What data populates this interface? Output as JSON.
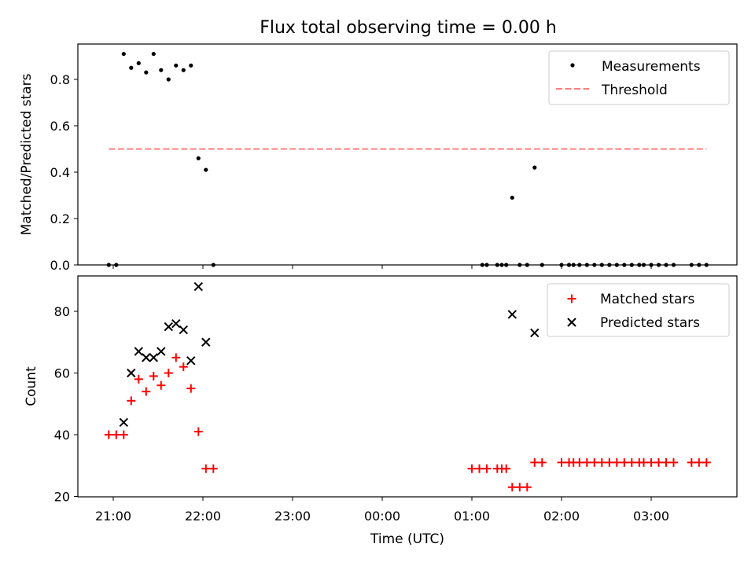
{
  "title": "Flux total observing time = 0.00 h",
  "chart_data": [
    {
      "type": "scatter",
      "ylabel": "Matched/Predicted stars",
      "xlabel": "",
      "ylim": [
        0,
        0.95
      ],
      "yticks": [
        0.0,
        0.2,
        0.4,
        0.6,
        0.8
      ],
      "legend_position": "top-right",
      "series": [
        {
          "name": "Measurements",
          "marker": "dot",
          "color": "#000000",
          "x": [
            "20:57",
            "21:02",
            "21:07",
            "21:12",
            "21:17",
            "21:22",
            "21:27",
            "21:32",
            "21:37",
            "21:42",
            "21:47",
            "21:52",
            "21:57",
            "22:02",
            "22:07",
            "01:07",
            "01:10",
            "01:17",
            "01:20",
            "01:23",
            "01:27",
            "01:32",
            "01:37",
            "01:42",
            "01:47",
            "02:00",
            "02:05",
            "02:08",
            "02:12",
            "02:17",
            "02:22",
            "02:27",
            "02:32",
            "02:37",
            "02:42",
            "02:47",
            "02:52",
            "02:55",
            "03:00",
            "03:05",
            "03:10",
            "03:15",
            "03:27",
            "03:32",
            "03:37"
          ],
          "y": [
            0.0,
            0.0,
            0.91,
            0.85,
            0.87,
            0.83,
            0.91,
            0.84,
            0.8,
            0.86,
            0.84,
            0.86,
            0.46,
            0.41,
            0.0,
            0.0,
            0.0,
            0.0,
            0.0,
            0.0,
            0.29,
            0.0,
            0.0,
            0.42,
            0.0,
            0.0,
            0.0,
            0.0,
            0.0,
            0.0,
            0.0,
            0.0,
            0.0,
            0.0,
            0.0,
            0.0,
            0.0,
            0.0,
            0.0,
            0.0,
            0.0,
            0.0,
            0.0,
            0.0,
            0.0
          ]
        },
        {
          "name": "Threshold",
          "type": "line",
          "style": "dashed",
          "color": "#ff7f7f",
          "x": [
            "20:57",
            "03:37"
          ],
          "y": [
            0.5,
            0.5
          ]
        }
      ]
    },
    {
      "type": "scatter",
      "ylabel": "Count",
      "xlabel": "Time (UTC)",
      "ylim": [
        20,
        92
      ],
      "yticks": [
        20,
        40,
        60,
        80
      ],
      "xticks": [
        "21:00",
        "22:00",
        "23:00",
        "00:00",
        "01:00",
        "02:00",
        "03:00"
      ],
      "legend_position": "top-right",
      "series": [
        {
          "name": "Matched stars",
          "marker": "plus",
          "color": "#ff0000",
          "x": [
            "20:57",
            "21:02",
            "21:07",
            "21:12",
            "21:17",
            "21:22",
            "21:27",
            "21:32",
            "21:37",
            "21:42",
            "21:47",
            "21:52",
            "21:57",
            "22:02",
            "22:07",
            "01:00",
            "01:05",
            "01:10",
            "01:17",
            "01:20",
            "01:23",
            "01:27",
            "01:32",
            "01:37",
            "01:42",
            "01:47",
            "02:00",
            "02:05",
            "02:08",
            "02:12",
            "02:17",
            "02:22",
            "02:27",
            "02:32",
            "02:37",
            "02:42",
            "02:47",
            "02:52",
            "02:55",
            "03:00",
            "03:05",
            "03:10",
            "03:15",
            "03:27",
            "03:32",
            "03:37"
          ],
          "y": [
            40,
            40,
            40,
            51,
            58,
            54,
            59,
            56,
            60,
            65,
            62,
            55,
            41,
            29,
            29,
            29,
            29,
            29,
            29,
            29,
            29,
            23,
            23,
            23,
            31,
            31,
            31,
            31,
            31,
            31,
            31,
            31,
            31,
            31,
            31,
            31,
            31,
            31,
            31,
            31,
            31,
            31,
            31,
            31,
            31,
            31
          ]
        },
        {
          "name": "Predicted stars",
          "marker": "x",
          "color": "#000000",
          "x": [
            "21:07",
            "21:12",
            "21:17",
            "21:22",
            "21:27",
            "21:32",
            "21:37",
            "21:42",
            "21:47",
            "21:52",
            "21:57",
            "22:02",
            "01:27",
            "01:42"
          ],
          "y": [
            44,
            60,
            67,
            65,
            65,
            67,
            75,
            76,
            74,
            64,
            88,
            70,
            79,
            73
          ]
        }
      ]
    }
  ]
}
